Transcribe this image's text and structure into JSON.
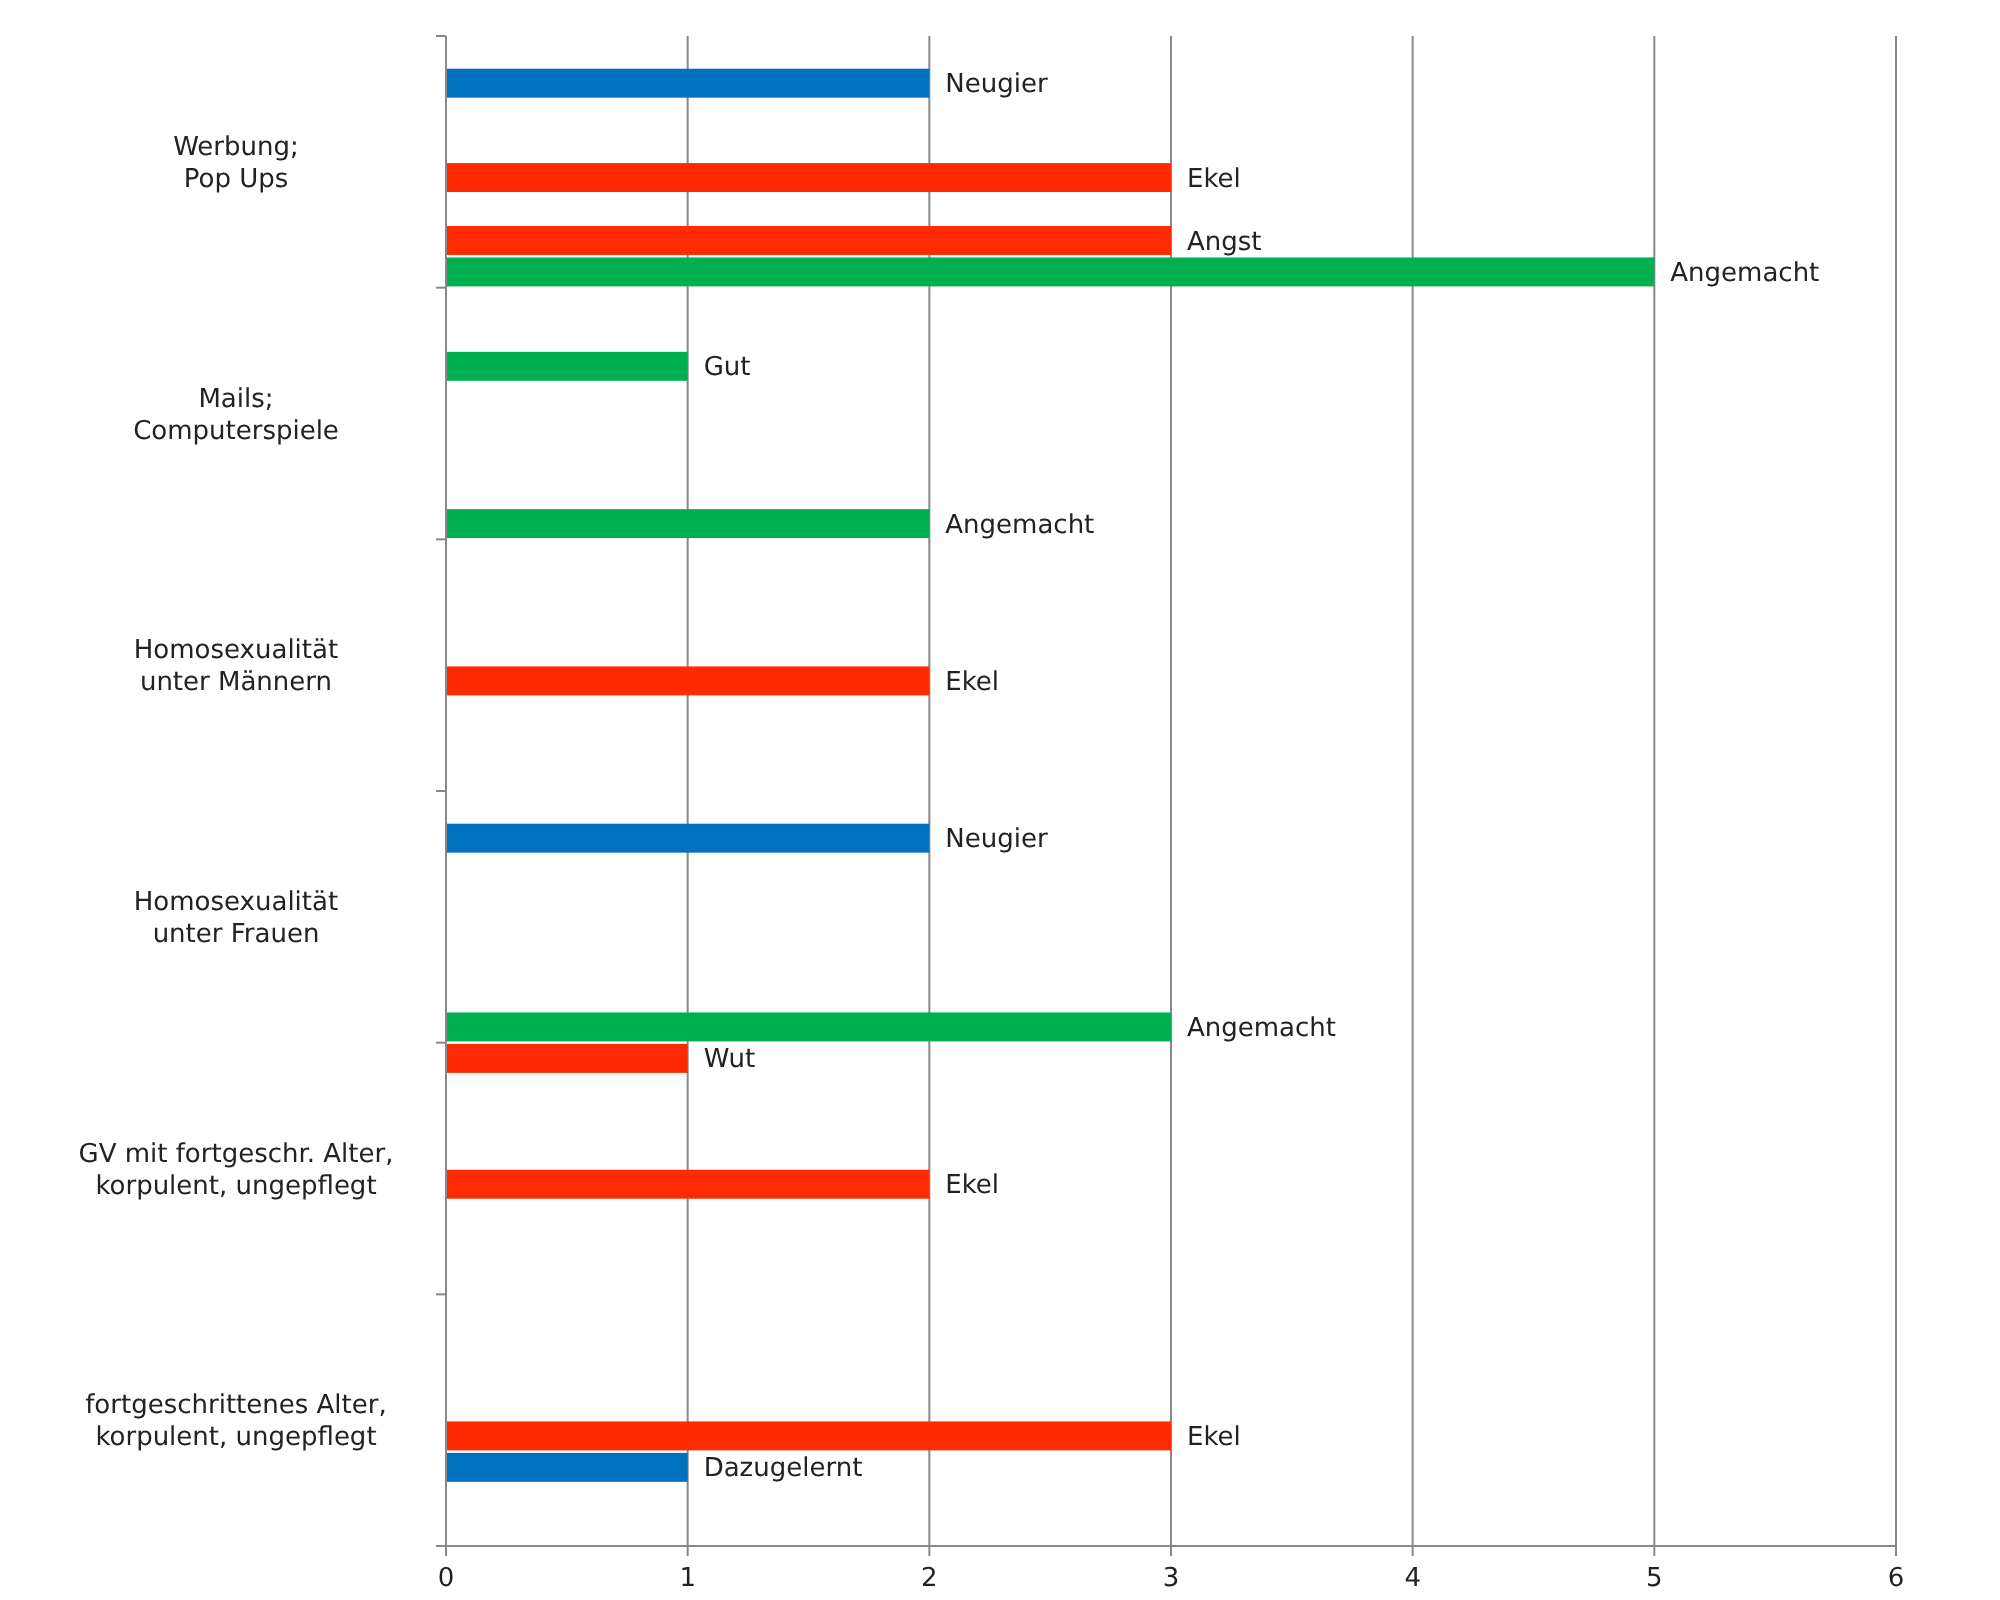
{
  "chart_data": {
    "type": "bar",
    "orientation": "horizontal",
    "categories": [
      "Werbung;\nPop Ups",
      "Mails;\nComputerspiele",
      "Homosexualität\nunter Männern",
      "Homosexualität\nunter Frauen",
      "GV mit fortgeschr. Alter,\nkorpulent, ungepflegt",
      "fortgeschrittenes Alter,\nkorpulent, ungepflegt"
    ],
    "series": [
      {
        "name": "Wut",
        "color": "#ff2a00",
        "values": [
          null,
          null,
          null,
          null,
          1,
          null
        ]
      },
      {
        "name": "Neugier",
        "color": "#0070c0",
        "values": [
          2,
          null,
          null,
          2,
          null,
          null
        ]
      },
      {
        "name": "Gut",
        "color": "#00b050",
        "values": [
          null,
          1,
          null,
          null,
          null,
          null
        ]
      },
      {
        "values": [
          null,
          null,
          null,
          null,
          null,
          null
        ]
      },
      {
        "name": "Ekel",
        "color": "#ff2a00",
        "values": [
          3,
          null,
          2,
          null,
          2,
          3
        ]
      },
      {
        "name": "Dazugelernt",
        "color": "#0070c0",
        "values": [
          null,
          null,
          null,
          null,
          null,
          1
        ]
      },
      {
        "name": "Angst",
        "color": "#ff2a00",
        "values": [
          3,
          null,
          null,
          null,
          null,
          null
        ]
      },
      {
        "name": "Angemacht",
        "color": "#00b050",
        "values": [
          5,
          2,
          null,
          3,
          null,
          null
        ]
      }
    ],
    "xlim": [
      0,
      6
    ],
    "xticks": [
      0,
      1,
      2,
      3,
      4,
      5,
      6
    ],
    "grid": "x"
  }
}
